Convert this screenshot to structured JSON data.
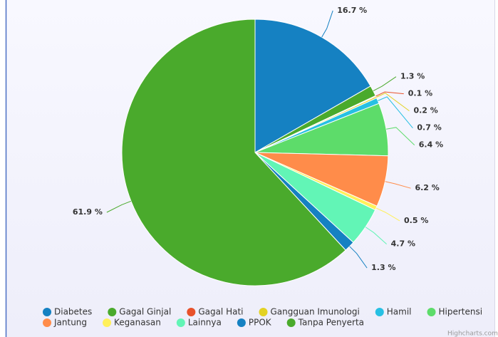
{
  "chart_data": {
    "type": "pie",
    "categories": [
      "Diabetes",
      "Gagal Ginjal",
      "Gagal Hati",
      "Gangguan Imunologi",
      "Hamil",
      "Hipertensi",
      "Jantung",
      "Keganasan",
      "Lainnya",
      "PPOK",
      "Tanpa Penyerta"
    ],
    "values": [
      16.7,
      1.3,
      0.1,
      0.2,
      0.7,
      6.4,
      6.2,
      0.5,
      4.7,
      1.3,
      61.9
    ],
    "value_labels": [
      "16.7 %",
      "1.3 %",
      "0.1 %",
      "0.2 %",
      "0.7 %",
      "6.4 %",
      "6.2 %",
      "0.5 %",
      "4.7 %",
      "1.3 %",
      "61.9 %"
    ],
    "colors": [
      "#1581c2",
      "#4aaa2c",
      "#e8512a",
      "#e3d223",
      "#27c0e3",
      "#5ddc6a",
      "#ff8c4a",
      "#fff05a",
      "#62f5b6",
      "#1581c2",
      "#4aaa2c"
    ],
    "legend": "bottom",
    "credit": "Highcharts.com"
  }
}
